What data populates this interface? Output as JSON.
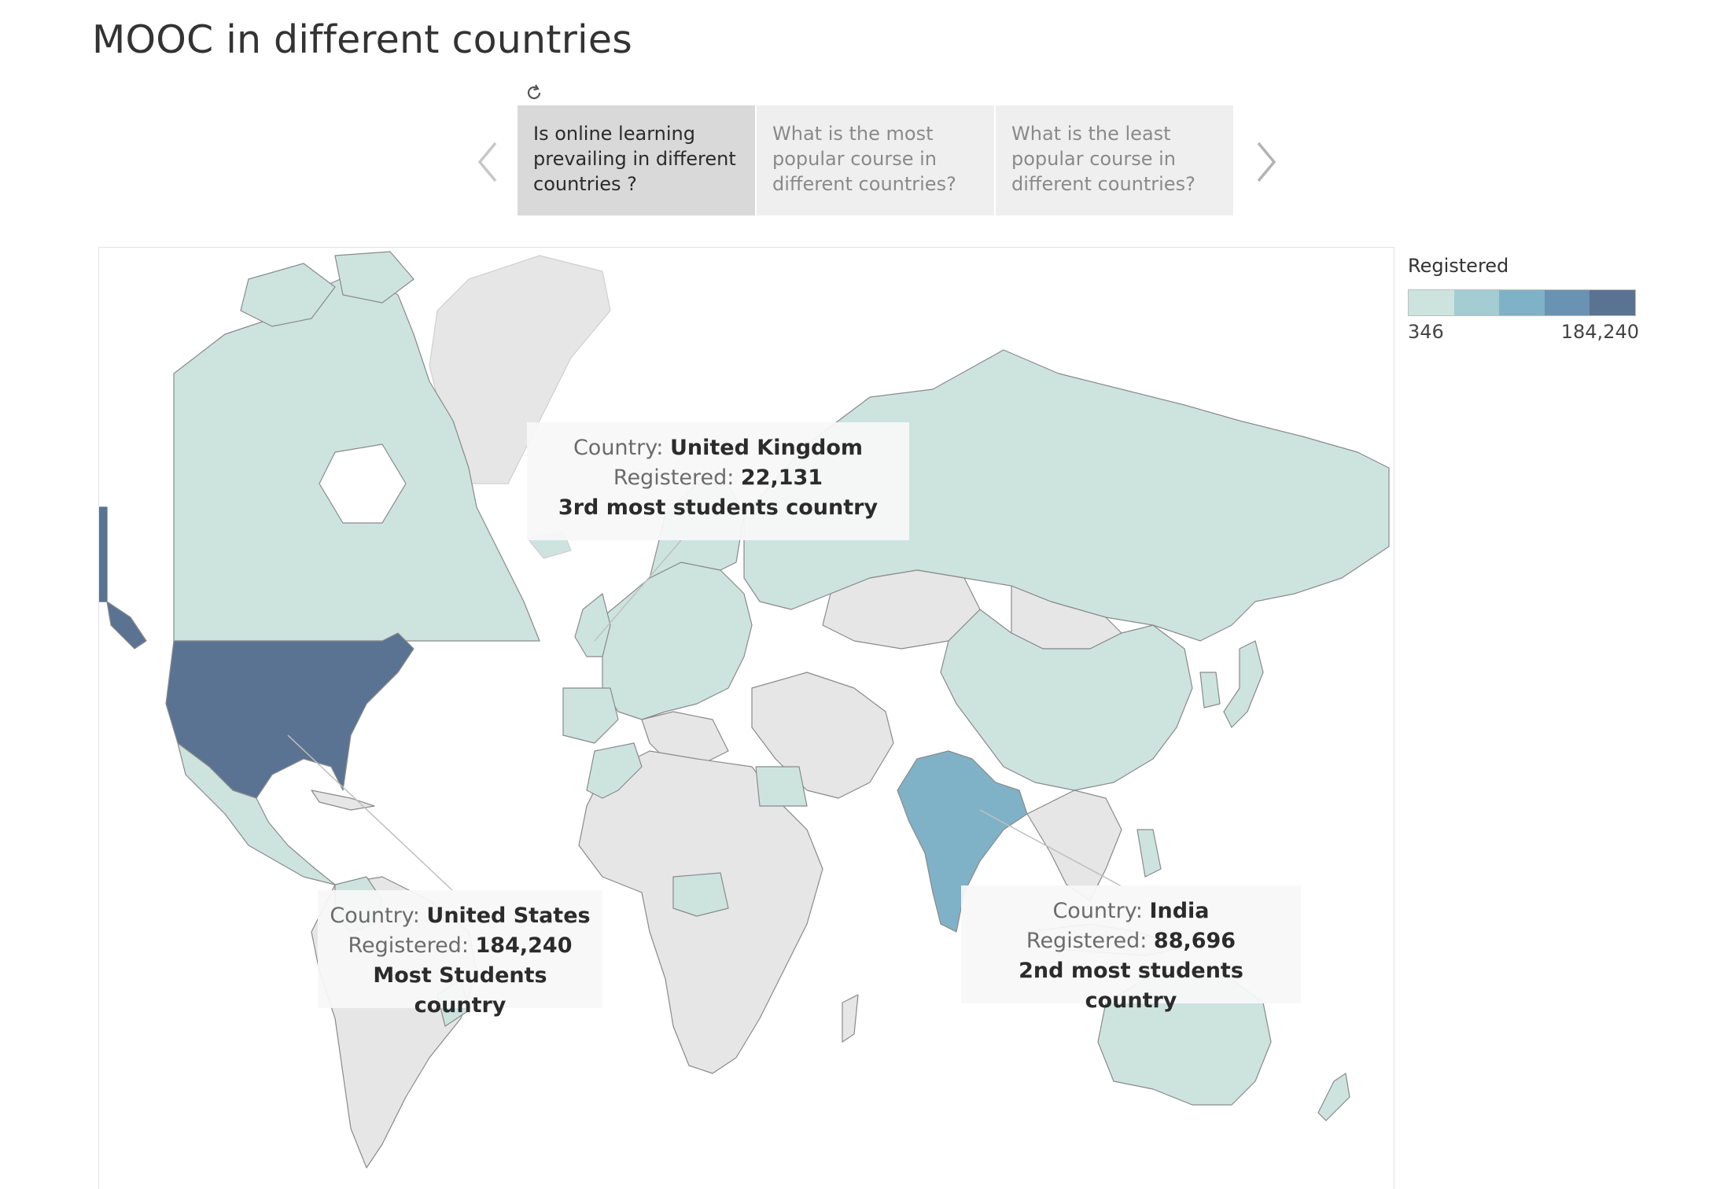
{
  "title": "MOOC in different countries",
  "story": {
    "revert_icon": "revert-icon",
    "prev_icon": "chevron-left-icon",
    "next_icon": "chevron-right-icon",
    "points": [
      {
        "label": "Is online learning prevailing in different countries ?",
        "active": true
      },
      {
        "label": "What is the most popular course in different countries?",
        "active": false
      },
      {
        "label": "What is the least popular course in different countries?",
        "active": false
      }
    ]
  },
  "legend": {
    "title": "Registered",
    "min_label": "346",
    "max_label": "184,240",
    "colors": [
      "#cde4de",
      "#a3cdd3",
      "#7fb2c7",
      "#6a92b2",
      "#5a7393"
    ]
  },
  "colors": {
    "no_data": "#e6e6e6",
    "low": "#cde4de",
    "mid": "#7fb2c7",
    "high": "#5a7393",
    "ocean": "#ffffff"
  },
  "tooltips": [
    {
      "id": "uk",
      "country_label": "Country:",
      "country": "United Kingdom",
      "registered_label": "Registered:",
      "registered": "22,131",
      "note": "3rd most students country"
    },
    {
      "id": "us",
      "country_label": "Country:",
      "country": "United States",
      "registered_label": "Registered:",
      "registered": "184,240",
      "note": "Most Students country"
    },
    {
      "id": "in",
      "country_label": "Country:",
      "country": "India",
      "registered_label": "Registered:",
      "registered": "88,696",
      "note": "2nd most students country"
    }
  ],
  "map_data": {
    "type": "choropleth",
    "measure": "Registered",
    "range": [
      346,
      184240
    ],
    "countries": [
      {
        "name": "United States",
        "registered": 184240
      },
      {
        "name": "India",
        "registered": 88696
      },
      {
        "name": "United Kingdom",
        "registered": 22131
      }
    ]
  }
}
